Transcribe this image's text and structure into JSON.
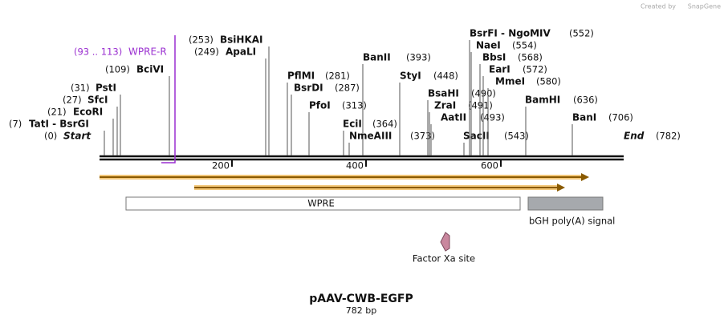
{
  "watermark": {
    "prefix": "Created by",
    "brand": "SnapGene"
  },
  "map": {
    "title": "pAAV-CWB-EGFP",
    "length": "782 bp",
    "ticks": [
      "200",
      "400",
      "600"
    ],
    "primer": {
      "position": "(93 .. 113)",
      "name": "WPRE-R"
    },
    "sites": [
      {
        "position": "(0)",
        "name": "Start"
      },
      {
        "position": "(7)",
        "name": "TatI  - BsrGI"
      },
      {
        "position": "(21)",
        "name": "EcoRI"
      },
      {
        "position": "(27)",
        "name": "SfcI"
      },
      {
        "position": "(31)",
        "name": "PstI"
      },
      {
        "position": "(109)",
        "name": "BciVI"
      },
      {
        "position": "(253)",
        "name": "BsiHKAI"
      },
      {
        "position": "(249)",
        "name": "ApaLI"
      },
      {
        "position": "(281)",
        "name": "PflMI"
      },
      {
        "position": "(287)",
        "name": "BsrDI"
      },
      {
        "position": "(313)",
        "name": "PfoI"
      },
      {
        "position": "(393)",
        "name": "BanII"
      },
      {
        "position": "(364)",
        "name": "EciI"
      },
      {
        "position": "(373)",
        "name": "NmeAIII"
      },
      {
        "position": "(448)",
        "name": "StyI"
      },
      {
        "position": "(490)",
        "name": "BsaHI"
      },
      {
        "position": "(491)",
        "name": "ZraI"
      },
      {
        "position": "(493)",
        "name": "AatII"
      },
      {
        "position": "(543)",
        "name": "SacII"
      },
      {
        "position": "(552)",
        "name": "BsrFI  - NgoMIV"
      },
      {
        "position": "(554)",
        "name": "NaeI"
      },
      {
        "position": "(568)",
        "name": "BbsI"
      },
      {
        "position": "(572)",
        "name": "EarI"
      },
      {
        "position": "(580)",
        "name": "MmeI"
      },
      {
        "position": "(636)",
        "name": "BamHI"
      },
      {
        "position": "(706)",
        "name": "BanI"
      },
      {
        "position": "(782)",
        "name": "End"
      }
    ],
    "features": [
      {
        "name": "WPRE"
      },
      {
        "name": "bGH poly(A) signal"
      },
      {
        "name": "Factor Xa site"
      }
    ]
  }
}
